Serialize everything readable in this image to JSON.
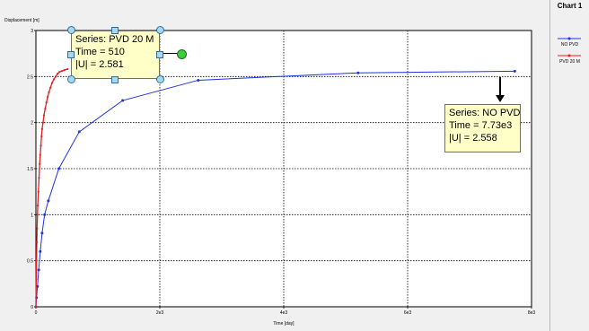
{
  "chart_data": {
    "type": "line",
    "title": "",
    "xlabel": "Time [day]",
    "ylabel": "Displacement [m]",
    "xlim": [
      0,
      8000
    ],
    "ylim": [
      0,
      3
    ],
    "x_ticks": [
      {
        "value": 0,
        "label": "0"
      },
      {
        "value": 2000,
        "label": "2e3"
      },
      {
        "value": 4000,
        "label": "4e3"
      },
      {
        "value": 6000,
        "label": "6e3"
      },
      {
        "value": 8000,
        "label": "8e3"
      }
    ],
    "y_ticks": [
      {
        "value": 0,
        "label": "0"
      },
      {
        "value": 0.5,
        "label": "0.5"
      },
      {
        "value": 1,
        "label": "1"
      },
      {
        "value": 1.5,
        "label": "1.5"
      },
      {
        "value": 2,
        "label": "2"
      },
      {
        "value": 2.5,
        "label": "2.5"
      },
      {
        "value": 3,
        "label": "3"
      }
    ],
    "grid": true,
    "legend_position": "right",
    "series": [
      {
        "name": "NO PVD",
        "color": "#1f32e6",
        "x": [
          0,
          10,
          25,
          45,
          70,
          100,
          140,
          200,
          370,
          700,
          1400,
          2620,
          5200,
          7730
        ],
        "y": [
          0,
          0.1,
          0.22,
          0.4,
          0.6,
          0.8,
          1.0,
          1.15,
          1.5,
          1.9,
          2.24,
          2.46,
          2.54,
          2.558
        ]
      },
      {
        "name": "PVD 20 M",
        "color": "#e61e1e",
        "x": [
          0,
          5,
          10,
          15,
          20,
          25,
          30,
          40,
          50,
          60,
          70,
          80,
          90,
          100,
          115,
          130,
          150,
          170,
          190,
          210,
          235,
          260,
          290,
          320,
          350,
          380,
          420,
          460,
          510
        ],
        "y": [
          0,
          0.3,
          0.5,
          0.7,
          0.85,
          1.0,
          1.1,
          1.25,
          1.4,
          1.55,
          1.65,
          1.75,
          1.85,
          1.93,
          2.0,
          2.08,
          2.15,
          2.22,
          2.28,
          2.33,
          2.38,
          2.43,
          2.47,
          2.5,
          2.53,
          2.55,
          2.56,
          2.57,
          2.581
        ]
      }
    ]
  },
  "legend": {
    "title": "Chart 1",
    "items": [
      {
        "label": "NO PVD",
        "color": "#1f32e6"
      },
      {
        "label": "PVD 20 M",
        "color": "#e61e1e"
      }
    ]
  },
  "tooltips": {
    "pvd": {
      "series": "Series: PVD 20 M",
      "time": "Time = 510",
      "u": "|U| = 2.581"
    },
    "nopvd": {
      "series": "Series: NO PVD",
      "time": "Time = 7.73e3",
      "u": "|U| = 2.558"
    }
  }
}
